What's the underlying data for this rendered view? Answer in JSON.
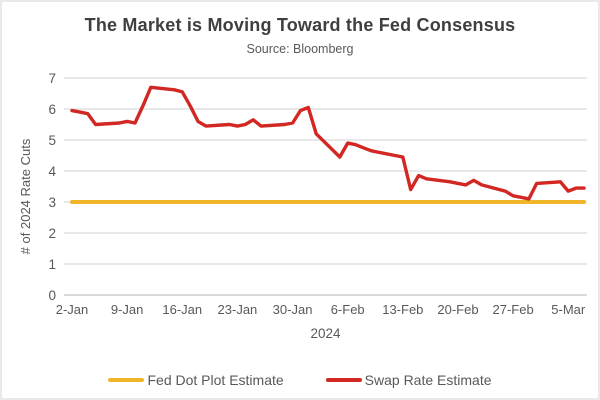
{
  "chart_data": {
    "type": "line",
    "title": "The Market is Moving Toward the Fed Consensus",
    "subtitle": "Source: Bloomberg",
    "xlabel": "2024",
    "ylabel": "# of 2024 Rate Cuts",
    "ylim": [
      0,
      7
    ],
    "y_ticks": [
      0,
      1,
      2,
      3,
      4,
      5,
      6,
      7
    ],
    "x_ticks": [
      "2-Jan",
      "9-Jan",
      "16-Jan",
      "23-Jan",
      "30-Jan",
      "6-Feb",
      "13-Feb",
      "20-Feb",
      "27-Feb",
      "5-Mar"
    ],
    "grid": "horizontal-only",
    "legend_position": "bottom-center",
    "colors": {
      "grid": "#d9d9d9",
      "axis_line": "#c4c4c4",
      "tick_text": "#595959",
      "title_text": "#3f3f3f"
    },
    "series": [
      {
        "name": "Fed Dot Plot Estimate",
        "color": "#f0b62a",
        "style": "constant",
        "value": 3,
        "span": [
          "2-Jan",
          "7-Mar"
        ]
      },
      {
        "name": "Swap Rate Estimate",
        "color": "#d22722",
        "style": "line",
        "points": [
          [
            "2-Jan",
            5.95
          ],
          [
            "3-Jan",
            5.9
          ],
          [
            "4-Jan",
            5.85
          ],
          [
            "5-Jan",
            5.5
          ],
          [
            "8-Jan",
            5.55
          ],
          [
            "9-Jan",
            5.6
          ],
          [
            "10-Jan",
            5.55
          ],
          [
            "11-Jan",
            6.1
          ],
          [
            "12-Jan",
            6.7
          ],
          [
            "15-Jan",
            6.62
          ],
          [
            "16-Jan",
            6.55
          ],
          [
            "17-Jan",
            6.1
          ],
          [
            "18-Jan",
            5.6
          ],
          [
            "19-Jan",
            5.45
          ],
          [
            "22-Jan",
            5.5
          ],
          [
            "23-Jan",
            5.45
          ],
          [
            "24-Jan",
            5.5
          ],
          [
            "25-Jan",
            5.65
          ],
          [
            "26-Jan",
            5.45
          ],
          [
            "29-Jan",
            5.5
          ],
          [
            "30-Jan",
            5.55
          ],
          [
            "31-Jan",
            5.95
          ],
          [
            "1-Feb",
            6.05
          ],
          [
            "2-Feb",
            5.2
          ],
          [
            "5-Feb",
            4.45
          ],
          [
            "6-Feb",
            4.9
          ],
          [
            "7-Feb",
            4.85
          ],
          [
            "8-Feb",
            4.75
          ],
          [
            "9-Feb",
            4.65
          ],
          [
            "12-Feb",
            4.5
          ],
          [
            "13-Feb",
            4.45
          ],
          [
            "14-Feb",
            3.4
          ],
          [
            "15-Feb",
            3.85
          ],
          [
            "16-Feb",
            3.75
          ],
          [
            "19-Feb",
            3.65
          ],
          [
            "20-Feb",
            3.6
          ],
          [
            "21-Feb",
            3.55
          ],
          [
            "22-Feb",
            3.7
          ],
          [
            "23-Feb",
            3.55
          ],
          [
            "26-Feb",
            3.35
          ],
          [
            "27-Feb",
            3.2
          ],
          [
            "28-Feb",
            3.15
          ],
          [
            "29-Feb",
            3.1
          ],
          [
            "1-Mar",
            3.6
          ],
          [
            "4-Mar",
            3.65
          ],
          [
            "5-Mar",
            3.35
          ],
          [
            "6-Mar",
            3.45
          ],
          [
            "7-Mar",
            3.45
          ]
        ]
      }
    ]
  }
}
